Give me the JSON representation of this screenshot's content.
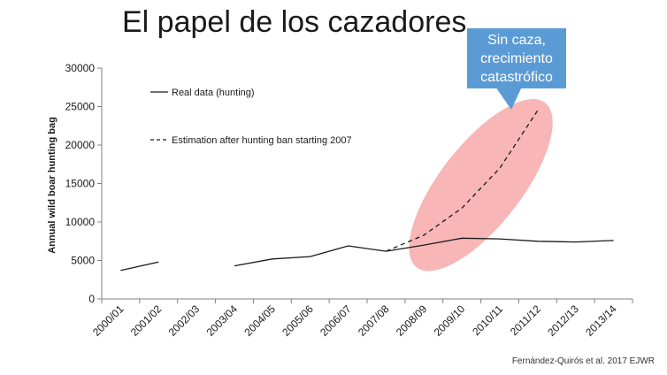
{
  "slide": {
    "title": "El papel de los cazadores",
    "callout_lines": [
      "Sin caza,",
      "crecimiento",
      "catastrófico"
    ],
    "source": "Fernández-Quirós et al. 2017 EJWR"
  },
  "colors": {
    "callout": "#5b9bd5",
    "ellipse": "#f7a9a9",
    "line": "#1a1a1a"
  },
  "chart_data": {
    "type": "line",
    "categories": [
      "2000/01",
      "2001/02",
      "2002/03",
      "2003/04",
      "2004/05",
      "2005/06",
      "2006/07",
      "2007/08",
      "2008/09",
      "2009/10",
      "2010/11",
      "2011/12",
      "2012/13",
      "2013/14"
    ],
    "ylabel": "Annual wild boar hunting bag",
    "ylim": [
      0,
      30000
    ],
    "yticks": [
      0,
      5000,
      10000,
      15000,
      20000,
      25000,
      30000
    ],
    "ytick_labels": [
      "0",
      "5000",
      "10000",
      "15000",
      "20000",
      "25000",
      "30000"
    ],
    "grid": false,
    "legend": "top-left",
    "series": [
      {
        "name": "Real data (hunting)",
        "style": "solid",
        "values": [
          3700,
          4800,
          null,
          4300,
          5200,
          5500,
          6900,
          6200,
          7000,
          7900,
          7800,
          7500,
          7400,
          7600
        ]
      },
      {
        "name": "Estimation after hunting ban starting 2007",
        "style": "dashed",
        "values": [
          null,
          null,
          null,
          null,
          null,
          null,
          null,
          6200,
          8300,
          11800,
          17000,
          24500,
          null,
          null
        ]
      }
    ]
  }
}
